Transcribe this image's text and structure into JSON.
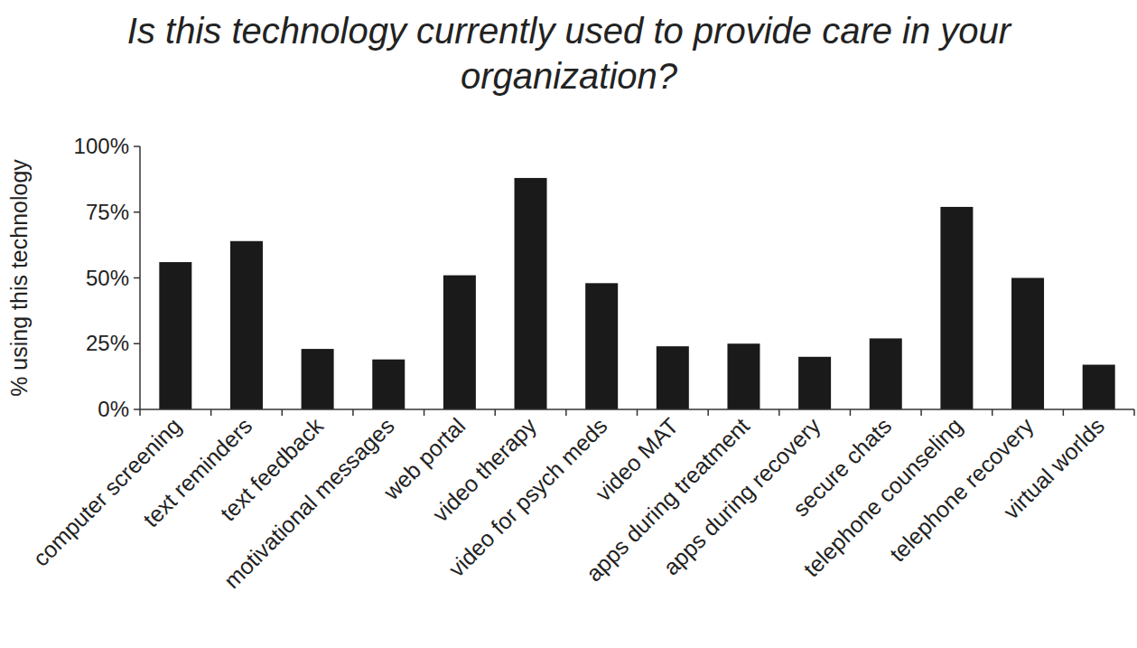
{
  "chart_data": {
    "type": "bar",
    "title": "Is this technology currently used to provide care in your organization?",
    "y_label": "% using this technology",
    "categories": [
      "computer screening",
      "text reminders",
      "text feedback",
      "motivational messages",
      "web portal",
      "video therapy",
      "video for psych meds",
      "video MAT",
      "apps during treatment",
      "apps during recovery",
      "secure chats",
      "telephone counseling",
      "telephone recovery",
      "virtual worlds"
    ],
    "values": [
      56,
      64,
      23,
      19,
      51,
      88,
      48,
      24,
      25,
      20,
      27,
      77,
      50,
      17
    ],
    "color": "#1a1a1a",
    "ylim": [
      0,
      100
    ],
    "yticks": [
      {
        "value": 0,
        "label": "0%"
      },
      {
        "value": 25,
        "label": "25%"
      },
      {
        "value": 50,
        "label": "50%"
      },
      {
        "value": 75,
        "label": "75%"
      },
      {
        "value": 100,
        "label": "100%"
      }
    ],
    "grid": false
  }
}
